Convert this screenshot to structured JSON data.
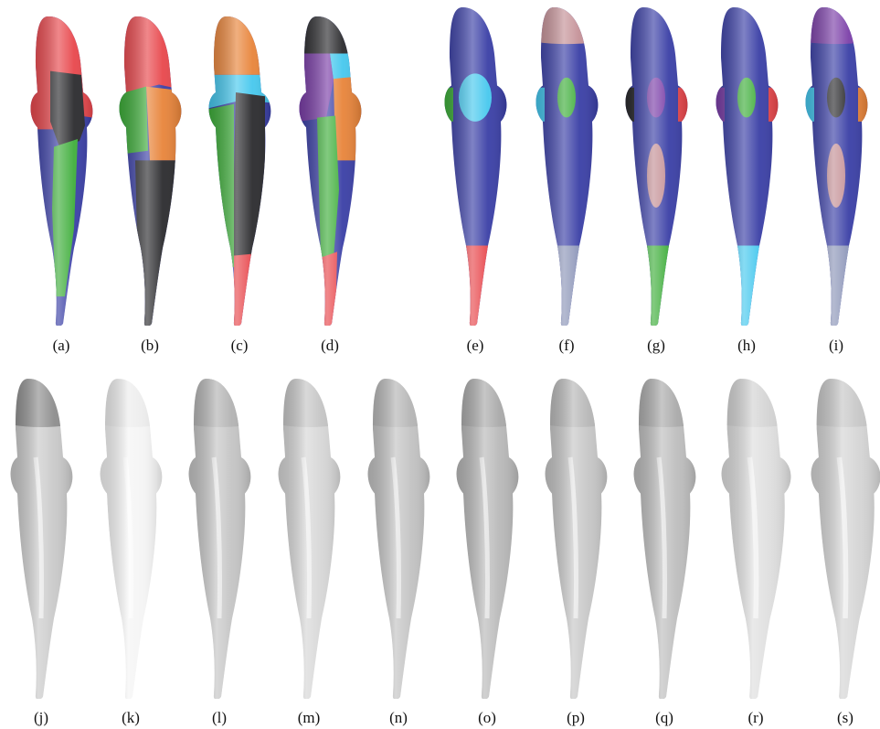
{
  "figure": {
    "colors": {
      "red": "#e8474c",
      "black": "#2b2b2e",
      "green": "#3fae3b",
      "blue": "#3a3fa6",
      "orange": "#e8843a",
      "cyan": "#46c8ee",
      "purple": "#7b3fa8",
      "pink": "#c49096",
      "grey_blue": "#8c95b8"
    },
    "top_left": [
      {
        "label": "(a)",
        "regions": [
          "red",
          "black",
          "green",
          "blue"
        ]
      },
      {
        "label": "(b)",
        "regions": [
          "red",
          "green",
          "orange",
          "black",
          "blue"
        ]
      },
      {
        "label": "(c)",
        "regions": [
          "orange",
          "cyan",
          "black",
          "green",
          "blue",
          "red"
        ]
      },
      {
        "label": "(d)",
        "regions": [
          "black",
          "cyan",
          "purple",
          "orange",
          "green",
          "blue",
          "red"
        ]
      }
    ],
    "top_right": [
      {
        "label": "(e)",
        "base": "blue",
        "head": "blue",
        "patch": "cyan",
        "lower_patch": null,
        "tail": "red",
        "left_fin": "green",
        "right_fin": "blue"
      },
      {
        "label": "(f)",
        "base": "blue",
        "head": "pink",
        "patch": "green",
        "lower_patch": null,
        "tail": "grey_blue",
        "left_fin": "cyan",
        "right_fin": "blue"
      },
      {
        "label": "(g)",
        "base": "blue",
        "head": "blue",
        "patch": "purple",
        "lower_patch": "pink",
        "tail": "green",
        "left_fin": "black",
        "right_fin": "red"
      },
      {
        "label": "(h)",
        "base": "blue",
        "head": "blue",
        "patch": "green",
        "lower_patch": null,
        "tail": "cyan",
        "left_fin": "purple",
        "right_fin": "red"
      },
      {
        "label": "(i)",
        "base": "blue",
        "head": "purple",
        "patch": "black",
        "lower_patch": "pink",
        "tail": "grey_blue",
        "left_fin": "cyan",
        "right_fin": "orange"
      }
    ],
    "bottom": [
      {
        "label": "(j)",
        "shade": "#c9c9c9",
        "head_shade": "#8d8d8d"
      },
      {
        "label": "(k)",
        "shade": "#f4f4f4",
        "head_shade": "#ececec"
      },
      {
        "label": "(l)",
        "shade": "#c4c4c4",
        "head_shade": "#b2b2b2"
      },
      {
        "label": "(m)",
        "shade": "#d6d6d6",
        "head_shade": "#c4c4c4"
      },
      {
        "label": "(n)",
        "shade": "#c2c2c2",
        "head_shade": "#b4b4b4"
      },
      {
        "label": "(o)",
        "shade": "#b8b8b8",
        "head_shade": "#a8a8a8"
      },
      {
        "label": "(p)",
        "shade": "#c6c6c6",
        "head_shade": "#b6b6b6"
      },
      {
        "label": "(q)",
        "shade": "#bdbdbd",
        "head_shade": "#a9a9a9"
      },
      {
        "label": "(r)",
        "shade": "#dedede",
        "head_shade": "#d2d2d2"
      },
      {
        "label": "(s)",
        "shade": "#d4d4d4",
        "head_shade": "#c6c6c6"
      }
    ]
  }
}
